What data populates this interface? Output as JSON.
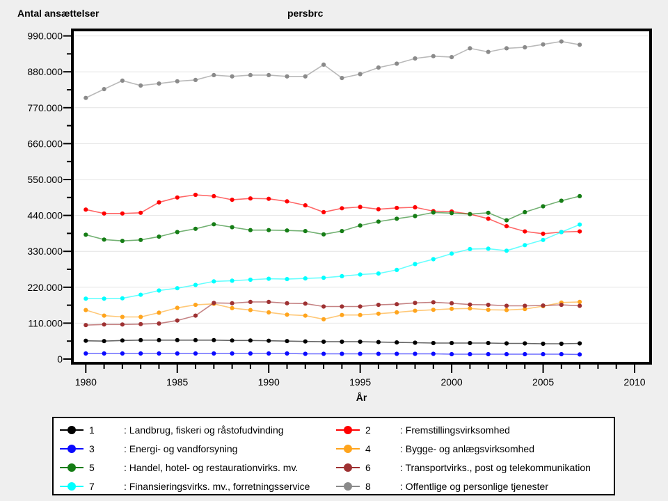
{
  "page": {
    "title_left": "Antal ansættelser",
    "title_right": "persbrc",
    "xlabel": "År"
  },
  "chart_data": {
    "type": "line",
    "title": "Antal ansættelser",
    "unit_label": "persbrc",
    "xlabel": "År",
    "ylabel": "Antal ansættelser",
    "grid": "horizontal",
    "legend_position": "bottom",
    "xlim": [
      1979.3,
      2010.9
    ],
    "ylim": [
      0,
      1008000
    ],
    "xticks_major": [
      1980,
      1985,
      1990,
      1995,
      2000,
      2005,
      2010
    ],
    "yticks_major": [
      0,
      110000,
      220000,
      330000,
      440000,
      550000,
      660000,
      770000,
      880000,
      990000
    ],
    "ytick_labels": [
      "0",
      "110.000",
      "220.000",
      "330.000",
      "440.000",
      "550.000",
      "660.000",
      "770.000",
      "880.000",
      "990.000"
    ],
    "x": [
      1980,
      1981,
      1982,
      1983,
      1984,
      1985,
      1986,
      1987,
      1988,
      1989,
      1990,
      1991,
      1992,
      1993,
      1994,
      1995,
      1996,
      1997,
      1998,
      1999,
      2000,
      2001,
      2002,
      2003,
      2004,
      2005,
      2006,
      2007
    ],
    "series": [
      {
        "id": "1",
        "name": "Landbrug, fiskeri og råstofudvinding",
        "color": "#000000",
        "values": [
          56000,
          55000,
          57000,
          58000,
          58000,
          58000,
          58000,
          58000,
          57000,
          57000,
          56000,
          55000,
          54000,
          53000,
          53000,
          53000,
          52000,
          51000,
          50000,
          49000,
          49000,
          49000,
          49000,
          48000,
          48000,
          47000,
          47000,
          48000
        ]
      },
      {
        "id": "2",
        "name": "Fremstillingsvirksomhed",
        "color": "#ff0000",
        "values": [
          458000,
          446000,
          446000,
          448000,
          480000,
          495000,
          503000,
          499000,
          488000,
          492000,
          491000,
          483000,
          471000,
          450000,
          462000,
          466000,
          459000,
          463000,
          465000,
          453000,
          452000,
          444000,
          430000,
          407000,
          391000,
          384000,
          389000,
          391000
        ]
      },
      {
        "id": "3",
        "name": "Energi- og vandforsyning",
        "color": "#0a0aff",
        "values": [
          17000,
          17000,
          17000,
          17000,
          17000,
          17000,
          17000,
          17000,
          17000,
          17000,
          17000,
          17000,
          16000,
          16000,
          16000,
          16000,
          16000,
          16000,
          16000,
          16000,
          15000,
          15000,
          15000,
          15000,
          15000,
          15000,
          15000,
          14000
        ]
      },
      {
        "id": "4",
        "name": "Bygge- og anlægsvirksomhed",
        "color": "#ffa41c",
        "values": [
          150000,
          133000,
          129000,
          129000,
          142000,
          157000,
          166000,
          169000,
          156000,
          150000,
          143000,
          136000,
          133000,
          122000,
          135000,
          135000,
          139000,
          143000,
          148000,
          151000,
          154000,
          155000,
          151000,
          150000,
          153000,
          162000,
          173000,
          175000
        ]
      },
      {
        "id": "5",
        "name": "Handel, hotel- og restaurationvirks. mv.",
        "color": "#157d15",
        "values": [
          381000,
          366000,
          362000,
          365000,
          375000,
          389000,
          399000,
          413000,
          404000,
          395000,
          395000,
          394000,
          392000,
          382000,
          392000,
          409000,
          421000,
          430000,
          438000,
          449000,
          447000,
          444000,
          448000,
          425000,
          450000,
          468000,
          485000,
          499000
        ]
      },
      {
        "id": "6",
        "name": "Transportvirks., post og telekommunikation",
        "color": "#9e3132",
        "values": [
          104000,
          106000,
          106000,
          107000,
          109000,
          118000,
          133000,
          172000,
          171000,
          175000,
          175000,
          171000,
          170000,
          161000,
          161000,
          161000,
          166000,
          168000,
          172000,
          174000,
          171000,
          167000,
          166000,
          163000,
          163000,
          164000,
          166000,
          163000
        ]
      },
      {
        "id": "7",
        "name": "Finansieringsvirks. mv., forretningsservice",
        "color": "#00ffff",
        "values": [
          185000,
          185000,
          186000,
          197000,
          210000,
          217000,
          227000,
          238000,
          240000,
          243000,
          246000,
          245000,
          247000,
          249000,
          254000,
          259000,
          262000,
          273000,
          291000,
          306000,
          323000,
          337000,
          338000,
          332000,
          349000,
          365000,
          389000,
          412000
        ]
      },
      {
        "id": "8",
        "name": "Offentlige og personlige tjenester",
        "color": "#8a8a8a",
        "values": [
          800000,
          827000,
          853000,
          838000,
          844000,
          851000,
          855000,
          870000,
          866000,
          870000,
          870000,
          866000,
          866000,
          902000,
          861000,
          873000,
          893000,
          905000,
          921000,
          928000,
          925000,
          952000,
          941000,
          952000,
          955000,
          964000,
          973000,
          963000
        ]
      }
    ]
  },
  "legend": {
    "entries": [
      {
        "number": "1",
        "label": ": Landbrug, fiskeri og råstofudvinding",
        "color": "#000000"
      },
      {
        "number": "2",
        "label": ": Fremstillingsvirksomhed",
        "color": "#ff0000"
      },
      {
        "number": "3",
        "label": ": Energi- og vandforsyning",
        "color": "#0a0aff"
      },
      {
        "number": "4",
        "label": ": Bygge- og anlægsvirksomhed",
        "color": "#ffa41c"
      },
      {
        "number": "5",
        "label": ": Handel, hotel- og restaurationvirks. mv.",
        "color": "#157d15"
      },
      {
        "number": "6",
        "label": ": Transportvirks., post og telekommunikation",
        "color": "#9e3132"
      },
      {
        "number": "7",
        "label": ": Finansieringsvirks. mv., forretningsservice",
        "color": "#00ffff"
      },
      {
        "number": "8",
        "label": ": Offentlige og personlige tjenester",
        "color": "#8a8a8a"
      }
    ]
  }
}
